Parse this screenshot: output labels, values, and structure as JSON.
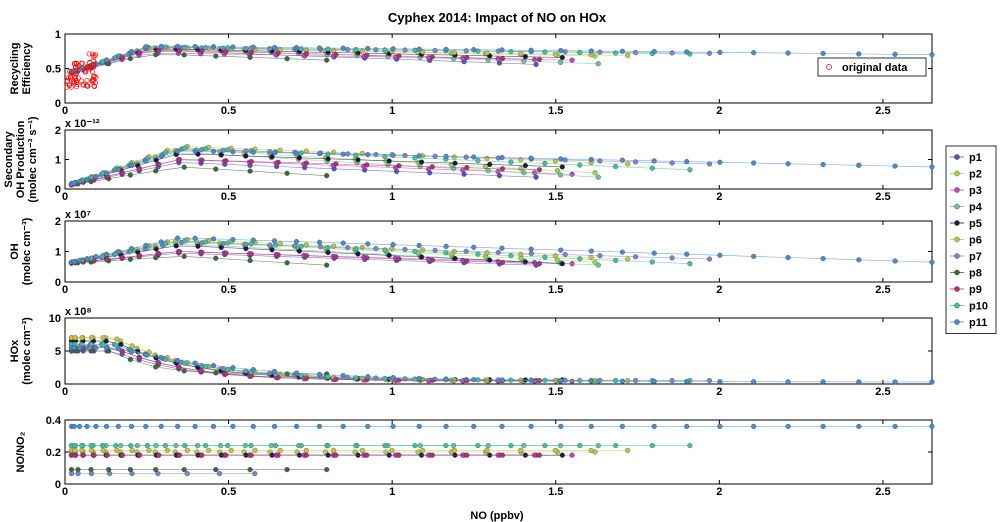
{
  "chart_data": {
    "type": "line",
    "title": "Cyphex 2014: Impact of NO on HOx",
    "xlabel": "NO (ppbv)",
    "xlim": [
      0,
      2.65
    ],
    "xticks": [
      0,
      0.5,
      1,
      1.5,
      2,
      2.5
    ],
    "xtick_labels": [
      "0",
      "0.5",
      "1",
      "1.5",
      "2",
      "2.5"
    ],
    "series_colors": {
      "p1": "#5b4fbf",
      "p2": "#9bd64a",
      "p3": "#c040c8",
      "p4": "#6cc48a",
      "p5": "#1a1a4a",
      "p6": "#c8c040",
      "p7": "#8080d0",
      "p8": "#3a6a3a",
      "p9": "#b03070",
      "p10": "#40c0a0",
      "p11": "#4a8ad0"
    },
    "legend": {
      "placement": "right",
      "entries": [
        "p1",
        "p2",
        "p3",
        "p4",
        "p5",
        "p6",
        "p7",
        "p8",
        "p9",
        "p10",
        "p11"
      ]
    },
    "panels": [
      {
        "ylabel_lines": [
          "Recycling",
          "Efficiency"
        ],
        "exponent": "",
        "ylim": [
          0,
          1
        ],
        "yticks": [
          "0",
          "0.5",
          "1"
        ],
        "inset_legend": "original data",
        "series": [
          {
            "name": "p1",
            "no_max": 1.44,
            "peak": 0.75,
            "end": 0.56
          },
          {
            "name": "p2",
            "no_max": 1.62,
            "peak": 0.8,
            "end": 0.68
          },
          {
            "name": "p3",
            "no_max": 1.55,
            "peak": 0.72,
            "end": 0.62
          },
          {
            "name": "p4",
            "no_max": 1.63,
            "peak": 0.78,
            "end": 0.57
          },
          {
            "name": "p5",
            "no_max": 1.52,
            "peak": 0.78,
            "end": 0.66
          },
          {
            "name": "p6",
            "no_max": 1.72,
            "peak": 0.8,
            "end": 0.69
          },
          {
            "name": "p7",
            "no_max": 1.97,
            "peak": 0.8,
            "end": 0.72
          },
          {
            "name": "p8",
            "no_max": 0.8,
            "peak": 0.7,
            "end": 0.62
          },
          {
            "name": "p9",
            "no_max": 1.45,
            "peak": 0.76,
            "end": 0.63
          },
          {
            "name": "p10",
            "no_max": 1.91,
            "peak": 0.81,
            "end": 0.71
          },
          {
            "name": "p11",
            "no_max": 2.65,
            "peak": 0.82,
            "end": 0.7
          }
        ]
      },
      {
        "ylabel_lines": [
          "Secondary",
          "OH Production",
          "(molec cm⁻³ s⁻¹)"
        ],
        "exponent": "x 10⁻¹²",
        "ylim": [
          0,
          2
        ],
        "yticks": [
          "0",
          "1",
          "2"
        ],
        "series": [
          {
            "name": "p1",
            "no_max": 1.44,
            "peak": 0.9,
            "end": 0.4
          },
          {
            "name": "p2",
            "no_max": 1.62,
            "peak": 1.35,
            "end": 0.55
          },
          {
            "name": "p3",
            "no_max": 1.55,
            "peak": 1.0,
            "end": 0.5
          },
          {
            "name": "p4",
            "no_max": 1.63,
            "peak": 1.25,
            "end": 0.4
          },
          {
            "name": "p5",
            "no_max": 1.52,
            "peak": 1.2,
            "end": 0.75
          },
          {
            "name": "p6",
            "no_max": 1.72,
            "peak": 1.45,
            "end": 0.85
          },
          {
            "name": "p7",
            "no_max": 1.97,
            "peak": 1.35,
            "end": 0.85
          },
          {
            "name": "p8",
            "no_max": 0.8,
            "peak": 0.75,
            "end": 0.45
          },
          {
            "name": "p9",
            "no_max": 1.45,
            "peak": 1.0,
            "end": 0.65
          },
          {
            "name": "p10",
            "no_max": 1.91,
            "peak": 1.4,
            "end": 0.65
          },
          {
            "name": "p11",
            "no_max": 2.65,
            "peak": 1.3,
            "end": 0.75
          }
        ]
      },
      {
        "ylabel_lines": [
          "OH",
          "(molec cm⁻³)"
        ],
        "exponent": "x 10⁷",
        "ylim": [
          0,
          2
        ],
        "yticks": [
          "0",
          "1",
          "2"
        ],
        "series": [
          {
            "name": "p1",
            "no_max": 1.44,
            "peak": 0.95,
            "end": 0.55
          },
          {
            "name": "p2",
            "no_max": 1.62,
            "peak": 1.35,
            "end": 0.65
          },
          {
            "name": "p3",
            "no_max": 1.55,
            "peak": 1.0,
            "end": 0.6
          },
          {
            "name": "p4",
            "no_max": 1.63,
            "peak": 1.25,
            "end": 0.55
          },
          {
            "name": "p5",
            "no_max": 1.52,
            "peak": 1.2,
            "end": 0.6
          },
          {
            "name": "p6",
            "no_max": 1.72,
            "peak": 1.4,
            "end": 0.75
          },
          {
            "name": "p7",
            "no_max": 1.97,
            "peak": 1.3,
            "end": 0.75
          },
          {
            "name": "p8",
            "no_max": 0.8,
            "peak": 0.85,
            "end": 0.55
          },
          {
            "name": "p9",
            "no_max": 1.45,
            "peak": 1.0,
            "end": 0.6
          },
          {
            "name": "p10",
            "no_max": 1.91,
            "peak": 1.35,
            "end": 0.6
          },
          {
            "name": "p11",
            "no_max": 2.65,
            "peak": 1.45,
            "end": 0.65
          }
        ]
      },
      {
        "ylabel_lines": [
          "HOx",
          "(molec cm⁻³)"
        ],
        "exponent": "x 10⁸",
        "ylim": [
          0,
          10
        ],
        "yticks": [
          "0",
          "5",
          "10"
        ],
        "series": [
          {
            "name": "p1",
            "no_max": 1.44,
            "peak": 5.0,
            "end": 0.5
          },
          {
            "name": "p2",
            "no_max": 1.62,
            "peak": 7.0,
            "end": 0.5
          },
          {
            "name": "p3",
            "no_max": 1.55,
            "peak": 5.5,
            "end": 0.4
          },
          {
            "name": "p4",
            "no_max": 1.63,
            "peak": 6.5,
            "end": 0.4
          },
          {
            "name": "p5",
            "no_max": 1.52,
            "peak": 6.5,
            "end": 0.6
          },
          {
            "name": "p6",
            "no_max": 1.72,
            "peak": 7.0,
            "end": 0.5
          },
          {
            "name": "p7",
            "no_max": 1.97,
            "peak": 6.0,
            "end": 0.5
          },
          {
            "name": "p8",
            "no_max": 0.8,
            "peak": 5.0,
            "end": 1.5
          },
          {
            "name": "p9",
            "no_max": 1.45,
            "peak": 5.5,
            "end": 0.5
          },
          {
            "name": "p10",
            "no_max": 1.91,
            "peak": 6.0,
            "end": 0.5
          },
          {
            "name": "p11",
            "no_max": 2.65,
            "peak": 5.5,
            "end": 0.3
          }
        ]
      },
      {
        "ylabel_lines": [
          "NO/NO₂"
        ],
        "exponent": "",
        "ylim": [
          0,
          0.4
        ],
        "yticks": [
          "0",
          "0.2",
          "0.4"
        ],
        "flat": true,
        "series": [
          {
            "name": "p1",
            "no_max": 1.44,
            "level": 0.18
          },
          {
            "name": "p2",
            "no_max": 1.62,
            "level": 0.2
          },
          {
            "name": "p3",
            "no_max": 1.55,
            "level": 0.18
          },
          {
            "name": "p4",
            "no_max": 1.63,
            "level": 0.24
          },
          {
            "name": "p5",
            "no_max": 1.52,
            "level": 0.18
          },
          {
            "name": "p6",
            "no_max": 1.72,
            "level": 0.21
          },
          {
            "name": "p7",
            "no_max": 0.58,
            "level": 0.065
          },
          {
            "name": "p8",
            "no_max": 0.8,
            "level": 0.09
          },
          {
            "name": "p9",
            "no_max": 1.45,
            "level": 0.18
          },
          {
            "name": "p10",
            "no_max": 1.91,
            "level": 0.24
          },
          {
            "name": "p11",
            "no_max": 2.65,
            "level": 0.36
          }
        ]
      }
    ]
  }
}
